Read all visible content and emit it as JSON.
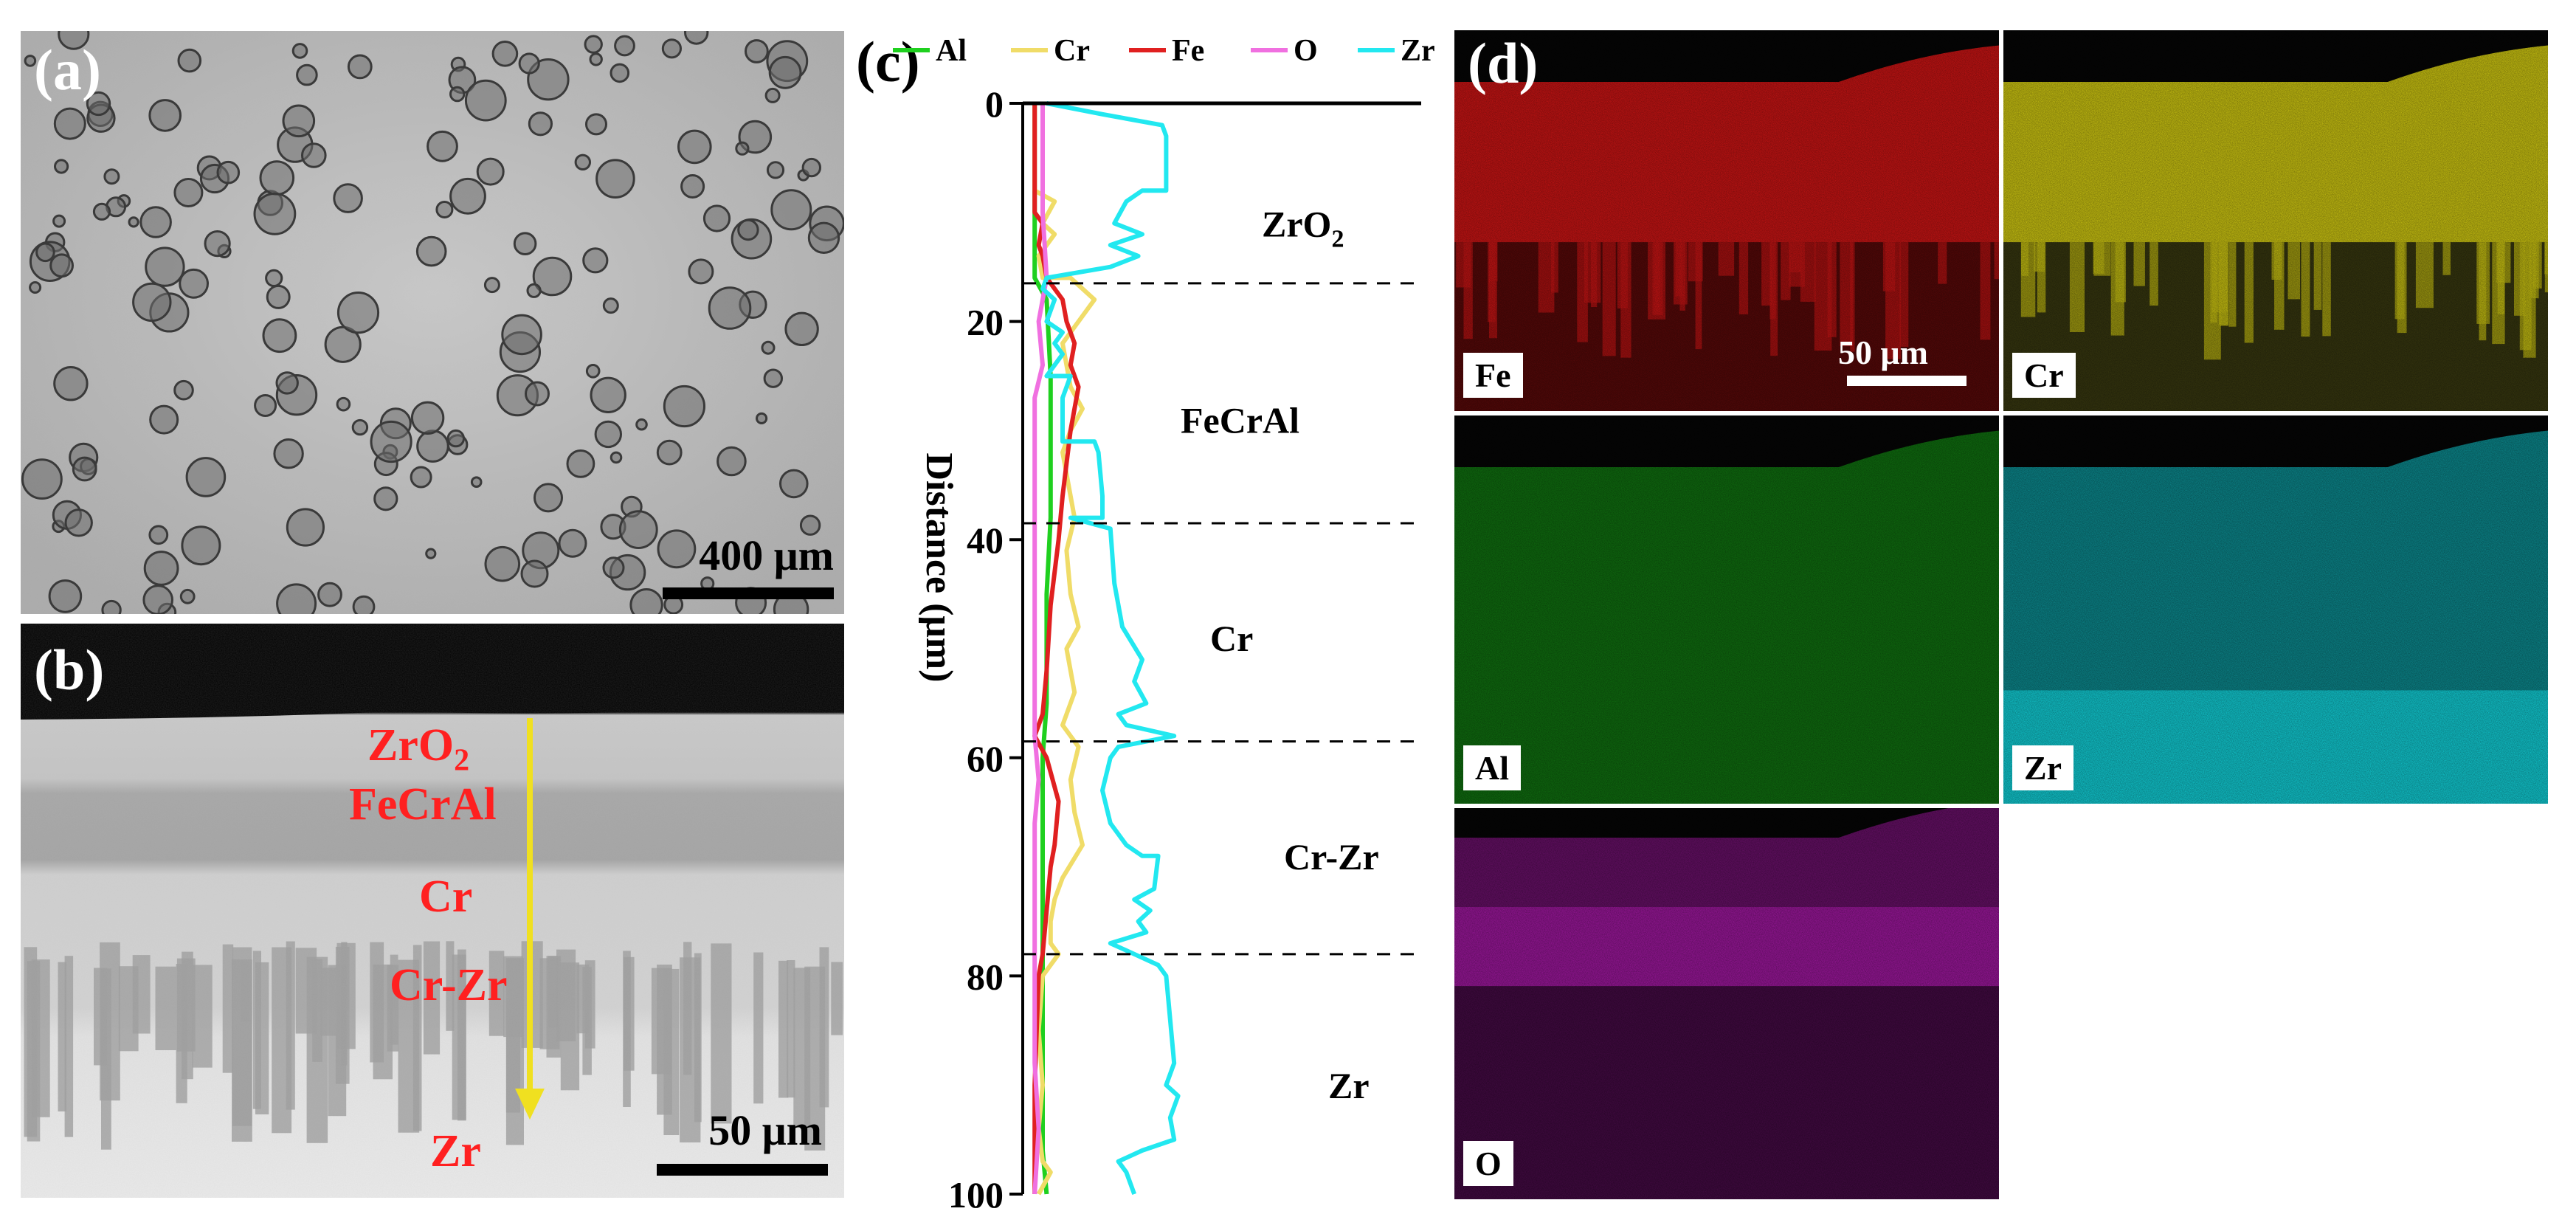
{
  "panel_a": {
    "label": "(a)",
    "scale_bar": "400 μm"
  },
  "panel_b": {
    "label": "(b)",
    "scale_bar": "50 μm",
    "layers": [
      "ZrO",
      "FeCrAl",
      "Cr",
      "Cr-Zr",
      "Zr"
    ],
    "zro2_subscript": "2"
  },
  "panel_d": {
    "label": "(d)",
    "scale_bar": "50 μm",
    "maps": [
      {
        "element": "Fe",
        "color": "#d51515"
      },
      {
        "element": "Cr",
        "color": "#d8d012"
      },
      {
        "element": "Al",
        "color": "#18b018"
      },
      {
        "element": "Zr",
        "color": "#12d8e0"
      },
      {
        "element": "O",
        "color": "#a418a4"
      }
    ]
  },
  "chart_data": {
    "type": "line",
    "panel_label": "(c)",
    "title": "",
    "xlabel": "",
    "ylabel": "Distance (μm)",
    "y_inverted": true,
    "ylim": [
      0,
      100
    ],
    "yticks": [
      0,
      20,
      40,
      60,
      80,
      100
    ],
    "xlim": [
      0,
      100
    ],
    "legend_position": "top",
    "boundaries": [
      16.5,
      38.5,
      58.5,
      78
    ],
    "regions": [
      {
        "label": "ZrO",
        "subscript": "2",
        "y": 11
      },
      {
        "label": "FeCrAl",
        "y": 29
      },
      {
        "label": "Cr",
        "y": 49
      },
      {
        "label": "Cr-Zr",
        "y": 69
      },
      {
        "label": "Zr",
        "y": 90
      }
    ],
    "series": [
      {
        "name": "Al",
        "color": "#1fd01f",
        "points": [
          [
            3,
            0
          ],
          [
            3,
            16
          ],
          [
            6,
            18
          ],
          [
            7,
            25
          ],
          [
            7,
            38
          ],
          [
            6,
            45
          ],
          [
            6,
            55
          ],
          [
            5,
            60
          ],
          [
            5,
            78
          ],
          [
            5,
            80
          ],
          [
            5,
            90
          ],
          [
            5,
            96
          ],
          [
            6,
            100
          ]
        ]
      },
      {
        "name": "Cr",
        "color": "#f0dc68",
        "points": [
          [
            3,
            0
          ],
          [
            3,
            8
          ],
          [
            8,
            9
          ],
          [
            5,
            11
          ],
          [
            8,
            12
          ],
          [
            4,
            14
          ],
          [
            5,
            16
          ],
          [
            12,
            16
          ],
          [
            18,
            18
          ],
          [
            14,
            20
          ],
          [
            10,
            22
          ],
          [
            12,
            26
          ],
          [
            15,
            28
          ],
          [
            12,
            30
          ],
          [
            10,
            32
          ],
          [
            12,
            36
          ],
          [
            13,
            38
          ],
          [
            11,
            41
          ],
          [
            12,
            45
          ],
          [
            14,
            48
          ],
          [
            11,
            50
          ],
          [
            13,
            54
          ],
          [
            10,
            57
          ],
          [
            14,
            59
          ],
          [
            12,
            62
          ],
          [
            13,
            65
          ],
          [
            15,
            68
          ],
          [
            10,
            71
          ],
          [
            8,
            73
          ],
          [
            7,
            75
          ],
          [
            7,
            77
          ],
          [
            9,
            78
          ],
          [
            5,
            80
          ],
          [
            4,
            85
          ],
          [
            5,
            90
          ],
          [
            4,
            94
          ],
          [
            5,
            97
          ],
          [
            7,
            98
          ],
          [
            4,
            100
          ]
        ]
      },
      {
        "name": "Fe",
        "color": "#e02020",
        "points": [
          [
            3,
            0
          ],
          [
            3,
            10
          ],
          [
            5,
            11
          ],
          [
            4,
            13
          ],
          [
            5,
            14
          ],
          [
            6,
            16
          ],
          [
            10,
            18
          ],
          [
            11,
            20
          ],
          [
            13,
            22
          ],
          [
            12,
            24
          ],
          [
            14,
            26
          ],
          [
            13,
            28
          ],
          [
            12,
            30
          ],
          [
            11,
            33
          ],
          [
            10,
            36
          ],
          [
            9,
            40
          ],
          [
            7,
            46
          ],
          [
            6,
            52
          ],
          [
            5,
            56
          ],
          [
            3,
            58
          ],
          [
            6,
            60
          ],
          [
            9,
            64
          ],
          [
            8,
            68
          ],
          [
            7,
            70
          ],
          [
            6,
            74
          ],
          [
            5,
            78
          ],
          [
            4,
            80
          ],
          [
            3,
            90
          ],
          [
            3,
            100
          ]
        ]
      },
      {
        "name": "O",
        "color": "#f070e0",
        "points": [
          [
            5,
            0
          ],
          [
            5,
            10
          ],
          [
            6,
            16
          ],
          [
            4,
            20
          ],
          [
            5,
            24
          ],
          [
            3,
            27
          ],
          [
            3,
            38
          ],
          [
            3,
            50
          ],
          [
            3,
            58
          ],
          [
            4,
            62
          ],
          [
            3,
            66
          ],
          [
            3,
            78
          ],
          [
            3,
            88
          ],
          [
            4,
            94
          ],
          [
            3,
            100
          ]
        ]
      },
      {
        "name": "Zr",
        "color": "#22e8f0",
        "points": [
          [
            6,
            0
          ],
          [
            20,
            1
          ],
          [
            35,
            2
          ],
          [
            36,
            3
          ],
          [
            36,
            6
          ],
          [
            36,
            8
          ],
          [
            30,
            8
          ],
          [
            26,
            9
          ],
          [
            23,
            11
          ],
          [
            30,
            12
          ],
          [
            22,
            13
          ],
          [
            29,
            14
          ],
          [
            22,
            15
          ],
          [
            6,
            16
          ],
          [
            5,
            17
          ],
          [
            8,
            18
          ],
          [
            6,
            20
          ],
          [
            10,
            21
          ],
          [
            8,
            22
          ],
          [
            10,
            23
          ],
          [
            6,
            25
          ],
          [
            12,
            25
          ],
          [
            10,
            27
          ],
          [
            10,
            31
          ],
          [
            18,
            31
          ],
          [
            19,
            32
          ],
          [
            20,
            36
          ],
          [
            20,
            38
          ],
          [
            12,
            38
          ],
          [
            22,
            39
          ],
          [
            23,
            44
          ],
          [
            25,
            48
          ],
          [
            30,
            51
          ],
          [
            28,
            53
          ],
          [
            31,
            55
          ],
          [
            24,
            56
          ],
          [
            26,
            57
          ],
          [
            38,
            58
          ],
          [
            24,
            59
          ],
          [
            22,
            60
          ],
          [
            20,
            63
          ],
          [
            22,
            66
          ],
          [
            26,
            68
          ],
          [
            30,
            69
          ],
          [
            34,
            69
          ],
          [
            33,
            72
          ],
          [
            28,
            73
          ],
          [
            32,
            74
          ],
          [
            29,
            75
          ],
          [
            31,
            76
          ],
          [
            22,
            77
          ],
          [
            28,
            78
          ],
          [
            34,
            79
          ],
          [
            36,
            80
          ],
          [
            37,
            84
          ],
          [
            38,
            88
          ],
          [
            36,
            90
          ],
          [
            39,
            91
          ],
          [
            37,
            93
          ],
          [
            38,
            95
          ],
          [
            30,
            96
          ],
          [
            24,
            97
          ],
          [
            26,
            98
          ],
          [
            28,
            100
          ]
        ]
      }
    ]
  }
}
